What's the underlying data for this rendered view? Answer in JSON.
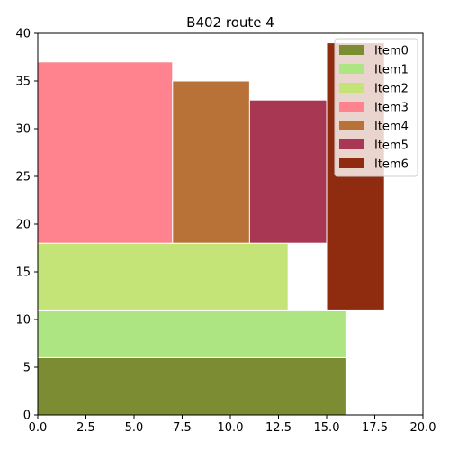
{
  "chart_data": {
    "type": "bar",
    "title": "B402 route 4",
    "xlabel": "",
    "ylabel": "",
    "xlim": [
      0,
      20
    ],
    "ylim": [
      0,
      40
    ],
    "xticks": [
      "0.0",
      "2.5",
      "5.0",
      "7.5",
      "10.0",
      "12.5",
      "15.0",
      "17.5",
      "20.0"
    ],
    "yticks": [
      "0",
      "5",
      "10",
      "15",
      "20",
      "25",
      "30",
      "35",
      "40"
    ],
    "grid": false,
    "legend_position": "top-right",
    "series": [
      {
        "name": "Item0",
        "color": "#7b8c33",
        "x_start": 0,
        "x_end": 16,
        "y_bottom": 0,
        "y_top": 6
      },
      {
        "name": "Item1",
        "color": "#aee583",
        "x_start": 0,
        "x_end": 16,
        "y_bottom": 6,
        "y_top": 11
      },
      {
        "name": "Item2",
        "color": "#c5e477",
        "x_start": 0,
        "x_end": 13,
        "y_bottom": 11,
        "y_top": 18
      },
      {
        "name": "Item3",
        "color": "#fe838f",
        "x_start": 0,
        "x_end": 7,
        "y_bottom": 18,
        "y_top": 37
      },
      {
        "name": "Item4",
        "color": "#b87237",
        "x_start": 7,
        "x_end": 11,
        "y_bottom": 18,
        "y_top": 35
      },
      {
        "name": "Item5",
        "color": "#a73752",
        "x_start": 11,
        "x_end": 15,
        "y_bottom": 18,
        "y_top": 33
      },
      {
        "name": "Item6",
        "color": "#8f2b0e",
        "x_start": 15,
        "x_end": 18,
        "y_bottom": 11,
        "y_top": 39
      }
    ]
  }
}
